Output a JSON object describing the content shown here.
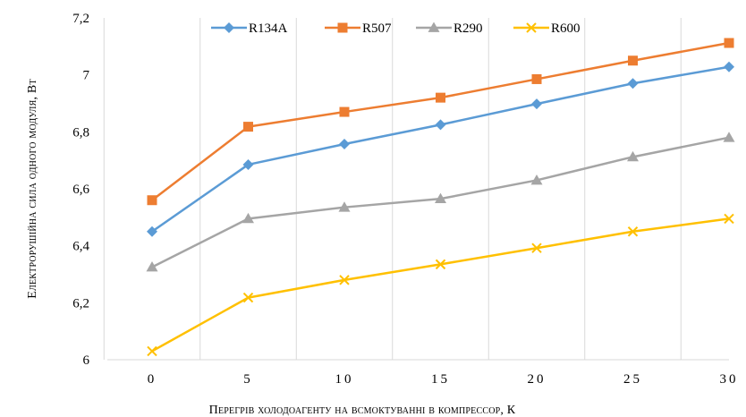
{
  "chart_data": {
    "type": "line",
    "xlabel": "Перегрів холодоагенту на всмоктуванні в компрессор, К",
    "ylabel": "Електрорушійна сила одного модуля, Вт",
    "x": [
      0,
      5,
      10,
      15,
      20,
      25,
      30
    ],
    "x_tick_labels": [
      "0",
      "5",
      "10",
      "15",
      "20",
      "25",
      "30"
    ],
    "ylim": [
      6,
      7.2
    ],
    "y_ticks": [
      6,
      6.2,
      6.4,
      6.6,
      6.8,
      7,
      7.2
    ],
    "y_tick_labels": [
      "6",
      "6,2",
      "6,4",
      "6,6",
      "6,8",
      "7",
      "7,2"
    ],
    "grid": "vertical",
    "legend_position": "top",
    "series": [
      {
        "name": "R134A",
        "color": "#5B9BD5",
        "marker": "diamond",
        "values": [
          6.45,
          6.685,
          6.757,
          6.825,
          6.898,
          6.97,
          7.028
        ]
      },
      {
        "name": "R507",
        "color": "#ED7D31",
        "marker": "square",
        "values": [
          6.56,
          6.818,
          6.87,
          6.92,
          6.985,
          7.05,
          7.112
        ]
      },
      {
        "name": "R290",
        "color": "#A5A5A5",
        "marker": "triangle",
        "values": [
          6.325,
          6.495,
          6.535,
          6.565,
          6.63,
          6.712,
          6.78
        ]
      },
      {
        "name": "R600",
        "color": "#FFC000",
        "marker": "x",
        "values": [
          6.03,
          6.218,
          6.28,
          6.335,
          6.392,
          6.45,
          6.495
        ]
      }
    ]
  }
}
